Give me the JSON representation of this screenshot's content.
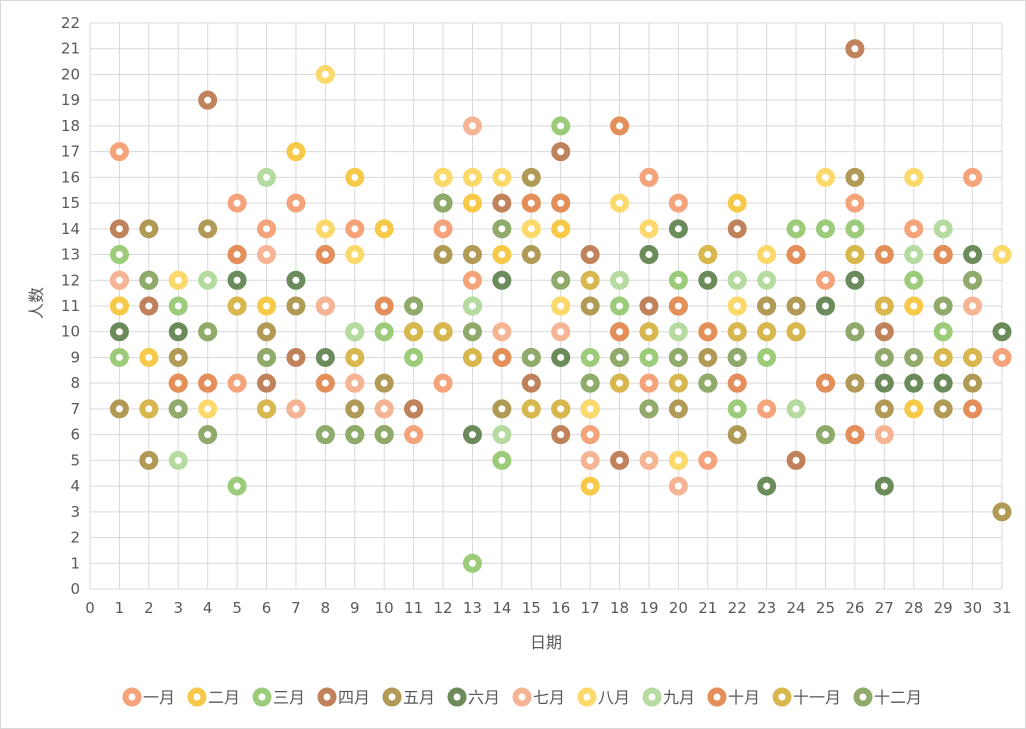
{
  "chart_data": {
    "type": "scatter",
    "title": "",
    "xlabel": "日期",
    "ylabel": "人数",
    "xlim": [
      0,
      31
    ],
    "ylim": [
      0,
      22
    ],
    "xticks": [
      "0",
      "1",
      "2",
      "3",
      "4",
      "5",
      "6",
      "7",
      "8",
      "9",
      "10",
      "11",
      "12",
      "13",
      "14",
      "15",
      "16",
      "17",
      "18",
      "19",
      "20",
      "21",
      "22",
      "23",
      "24",
      "25",
      "26",
      "27",
      "28",
      "29",
      "30",
      "31"
    ],
    "yticks": [
      "0",
      "1",
      "2",
      "3",
      "4",
      "5",
      "6",
      "7",
      "8",
      "9",
      "10",
      "11",
      "12",
      "13",
      "14",
      "15",
      "16",
      "17",
      "18",
      "19",
      "20",
      "21",
      "22"
    ],
    "grid": true,
    "legend_position": "bottom",
    "series": [
      {
        "name": "一月",
        "color": "#f4a37a",
        "x": [
          1,
          1,
          2,
          3,
          5,
          5,
          6,
          7,
          9,
          9,
          10,
          11,
          12,
          12,
          13,
          15,
          17,
          19,
          19,
          20,
          21,
          22,
          22,
          23,
          25,
          25,
          26,
          28,
          29,
          30,
          31
        ],
        "y": [
          17,
          12,
          7,
          8,
          8,
          15,
          14,
          15,
          8,
          14,
          7,
          6,
          8,
          14,
          12,
          15,
          6,
          16,
          8,
          15,
          5,
          10,
          8,
          7,
          8,
          12,
          15,
          14,
          13,
          16,
          9
        ]
      },
      {
        "name": "二月",
        "color": "#f7c948",
        "x": [
          1,
          1,
          2,
          3,
          5,
          6,
          7,
          9,
          9,
          10,
          12,
          13,
          14,
          14,
          15,
          16,
          16,
          17,
          19,
          20,
          21,
          22,
          22,
          23,
          24,
          24,
          26,
          27,
          28,
          28,
          29
        ],
        "y": [
          11,
          11,
          9,
          12,
          11,
          11,
          17,
          9,
          16,
          14,
          16,
          15,
          9,
          13,
          15,
          11,
          14,
          4,
          10,
          5,
          10,
          11,
          15,
          10,
          13,
          10,
          13,
          11,
          7,
          11,
          9
        ]
      },
      {
        "name": "三月",
        "color": "#9ccc7a",
        "x": [
          1,
          1,
          3,
          4,
          5,
          5,
          6,
          8,
          9,
          10,
          11,
          13,
          13,
          14,
          16,
          17,
          17,
          18,
          19,
          20,
          20,
          22,
          22,
          23,
          24,
          25,
          25,
          26,
          28,
          29,
          30
        ],
        "y": [
          9,
          13,
          11,
          10,
          4,
          12,
          9,
          6,
          10,
          10,
          9,
          1,
          11,
          5,
          18,
          9,
          8,
          11,
          9,
          12,
          9,
          12,
          7,
          9,
          14,
          14,
          6,
          14,
          12,
          10,
          9
        ]
      },
      {
        "name": "四月",
        "color": "#c0825a",
        "x": [
          1,
          2,
          4,
          4,
          5,
          6,
          7,
          7,
          8,
          11,
          11,
          14,
          15,
          16,
          16,
          17,
          18,
          18,
          19,
          20,
          22,
          23,
          24,
          26,
          26,
          27,
          29
        ],
        "y": [
          14,
          11,
          19,
          8,
          13,
          8,
          9,
          7,
          11,
          7,
          7,
          15,
          8,
          17,
          6,
          13,
          10,
          5,
          11,
          11,
          14,
          11,
          5,
          21,
          6,
          10,
          13
        ]
      },
      {
        "name": "五月",
        "color": "#b09a55",
        "x": [
          1,
          2,
          2,
          3,
          4,
          6,
          6,
          7,
          8,
          9,
          10,
          11,
          12,
          13,
          14,
          15,
          15,
          16,
          16,
          17,
          18,
          19,
          20,
          21,
          22,
          23,
          24,
          25,
          26,
          26,
          27,
          29,
          30,
          31
        ],
        "y": [
          7,
          14,
          5,
          9,
          14,
          10,
          7,
          11,
          13,
          7,
          8,
          10,
          13,
          13,
          7,
          16,
          13,
          15,
          7,
          11,
          8,
          7,
          7,
          9,
          6,
          11,
          11,
          11,
          16,
          8,
          7,
          7,
          8,
          3
        ]
      },
      {
        "name": "六月",
        "color": "#6b8c5a",
        "x": [
          1,
          2,
          3,
          3,
          5,
          7,
          8,
          9,
          10,
          12,
          13,
          14,
          15,
          16,
          17,
          18,
          19,
          20,
          21,
          21,
          22,
          23,
          25,
          26,
          27,
          27,
          28,
          29,
          30,
          31
        ],
        "y": [
          10,
          12,
          10,
          7,
          12,
          12,
          9,
          6,
          6,
          15,
          6,
          12,
          9,
          9,
          7,
          9,
          13,
          14,
          12,
          8,
          9,
          4,
          11,
          12,
          8,
          4,
          8,
          8,
          13,
          10
        ]
      },
      {
        "name": "七月",
        "color": "#f5b595",
        "x": [
          1,
          4,
          6,
          7,
          8,
          9,
          10,
          12,
          13,
          14,
          16,
          17,
          18,
          19,
          20,
          22,
          25,
          27,
          30
        ],
        "y": [
          12,
          8,
          13,
          7,
          11,
          8,
          7,
          10,
          18,
          10,
          10,
          5,
          10,
          5,
          4,
          10,
          8,
          6,
          11
        ]
      },
      {
        "name": "八月",
        "color": "#fbd96a",
        "x": [
          3,
          4,
          8,
          8,
          9,
          12,
          13,
          14,
          15,
          16,
          17,
          18,
          19,
          20,
          21,
          22,
          23,
          24,
          25,
          26,
          28,
          31
        ],
        "y": [
          12,
          7,
          20,
          14,
          13,
          16,
          16,
          16,
          14,
          11,
          7,
          15,
          14,
          5,
          13,
          11,
          13,
          10,
          16,
          13,
          16,
          13
        ]
      },
      {
        "name": "九月",
        "color": "#b5dba0",
        "x": [
          3,
          4,
          6,
          9,
          13,
          14,
          15,
          17,
          18,
          20,
          22,
          23,
          24,
          28,
          29,
          30
        ],
        "y": [
          5,
          12,
          16,
          10,
          11,
          6,
          7,
          12,
          12,
          10,
          12,
          12,
          7,
          13,
          14,
          12
        ]
      },
      {
        "name": "十月",
        "color": "#e48e5a",
        "x": [
          3,
          4,
          5,
          8,
          8,
          10,
          12,
          14,
          15,
          16,
          18,
          18,
          20,
          21,
          22,
          24,
          25,
          26,
          27,
          29,
          30
        ],
        "y": [
          8,
          8,
          13,
          8,
          13,
          11,
          10,
          9,
          15,
          15,
          18,
          10,
          11,
          10,
          8,
          13,
          8,
          6,
          13,
          13,
          7
        ]
      },
      {
        "name": "十一月",
        "color": "#d8b74e",
        "x": [
          2,
          5,
          6,
          9,
          10,
          11,
          12,
          13,
          15,
          16,
          17,
          18,
          19,
          20,
          21,
          22,
          23,
          24,
          26,
          27,
          28,
          29,
          30
        ],
        "y": [
          7,
          11,
          7,
          9,
          6,
          10,
          10,
          9,
          7,
          7,
          12,
          8,
          10,
          8,
          13,
          10,
          10,
          10,
          13,
          11,
          9,
          9,
          9
        ]
      },
      {
        "name": "十二月",
        "color": "#8faa6a",
        "x": [
          2,
          3,
          4,
          4,
          6,
          8,
          9,
          10,
          11,
          12,
          13,
          14,
          15,
          16,
          17,
          18,
          19,
          20,
          21,
          22,
          25,
          26,
          27,
          28,
          29,
          30
        ],
        "y": [
          12,
          7,
          10,
          6,
          9,
          6,
          6,
          6,
          11,
          15,
          10,
          14,
          9,
          12,
          8,
          9,
          7,
          9,
          8,
          9,
          6,
          10,
          9,
          9,
          11,
          12
        ]
      }
    ]
  }
}
